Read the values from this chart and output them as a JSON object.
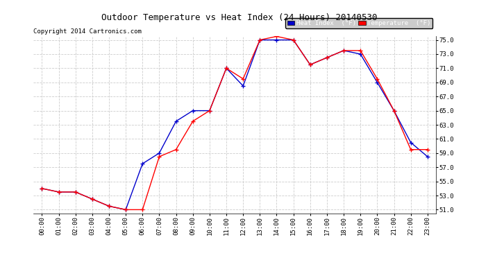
{
  "title": "Outdoor Temperature vs Heat Index (24 Hours) 20140530",
  "copyright": "Copyright 2014 Cartronics.com",
  "hours": [
    "00:00",
    "01:00",
    "02:00",
    "03:00",
    "04:00",
    "05:00",
    "06:00",
    "07:00",
    "08:00",
    "09:00",
    "10:00",
    "11:00",
    "12:00",
    "13:00",
    "14:00",
    "15:00",
    "16:00",
    "17:00",
    "18:00",
    "19:00",
    "20:00",
    "21:00",
    "22:00",
    "23:00"
  ],
  "temperature": [
    54.0,
    53.5,
    53.5,
    52.5,
    51.5,
    51.0,
    51.0,
    58.5,
    59.5,
    63.5,
    65.0,
    71.0,
    69.5,
    75.0,
    75.5,
    75.0,
    71.5,
    72.5,
    73.5,
    73.5,
    69.5,
    65.0,
    59.5,
    59.5
  ],
  "heat_index": [
    54.0,
    53.5,
    53.5,
    52.5,
    51.5,
    51.0,
    57.5,
    59.0,
    63.5,
    65.0,
    65.0,
    71.0,
    68.5,
    75.0,
    75.0,
    75.0,
    71.5,
    72.5,
    73.5,
    73.0,
    69.0,
    65.0,
    60.5,
    58.5
  ],
  "temp_color": "#ff0000",
  "heat_color": "#0000cc",
  "ylim_min": 50.5,
  "ylim_max": 75.5,
  "yticks": [
    51.0,
    53.0,
    55.0,
    57.0,
    59.0,
    61.0,
    63.0,
    65.0,
    67.0,
    69.0,
    71.0,
    73.0,
    75.0
  ],
  "bg_color": "#ffffff",
  "grid_color": "#cccccc",
  "legend_heat_bg": "#0000cc",
  "legend_temp_bg": "#ff0000",
  "legend_text_color": "#ffffff",
  "title_fontsize": 9,
  "copyright_fontsize": 6.5,
  "tick_fontsize": 6.5,
  "legend_fontsize": 6.5
}
